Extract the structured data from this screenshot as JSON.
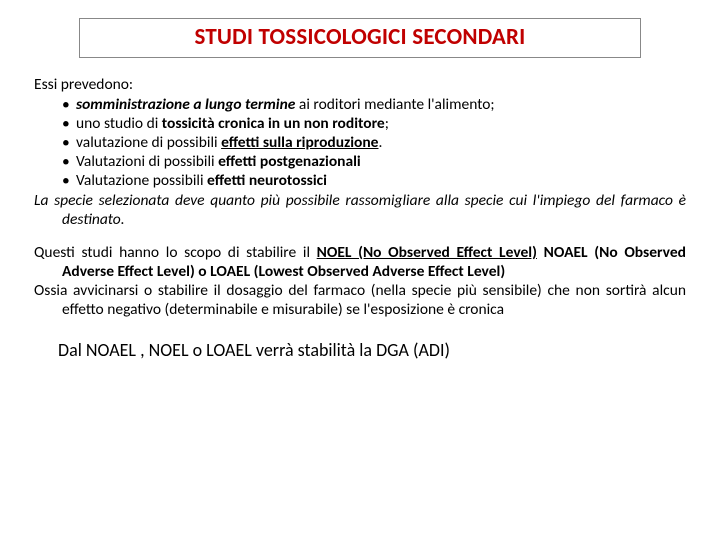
{
  "title": "STUDI TOSSICOLOGICI SECONDARI",
  "lead": "Essi prevedono:",
  "bullet1_pre": "somministrazione a lungo termine",
  "bullet1_post": " ai roditori mediante l'alimento;",
  "bullet2_pre": "uno studio di ",
  "bullet2_bold": "tossicità cronica in un non roditore",
  "bullet2_post": ";",
  "bullet3_pre": "valutazione di possibili ",
  "bullet3_bold": "effetti sulla riproduzione",
  "bullet3_post": ".",
  "bullet4_pre": "Valutazioni di possibili ",
  "bullet4_bold": "effetti postgenazionali",
  "bullet5_pre": "Valutazione possibili ",
  "bullet5_bold": "effetti neurotossici",
  "species_line": "La specie selezionata deve quanto più possibile rassomigliare alla specie cui l'impiego del farmaco è destinato.",
  "para2_pre": "Questi studi hanno lo scopo di stabilire il ",
  "para2_noel": "NOEL (No Observed Effect Level)",
  "para2_mid": " NOAEL (No Observed Adverse Effect Level)  o LOAEL  (Lowest Observed Adverse Effect Level)",
  "para3": "Ossia avvicinarsi o stabilire il dosaggio del farmaco (nella specie più sensibile) che non sortirà alcun effetto negativo (determinabile e misurabile) se l'esposizione è cronica",
  "final": "Dal NOAEL , NOEL o LOAEL verrà stabilità la DGA (ADI)"
}
